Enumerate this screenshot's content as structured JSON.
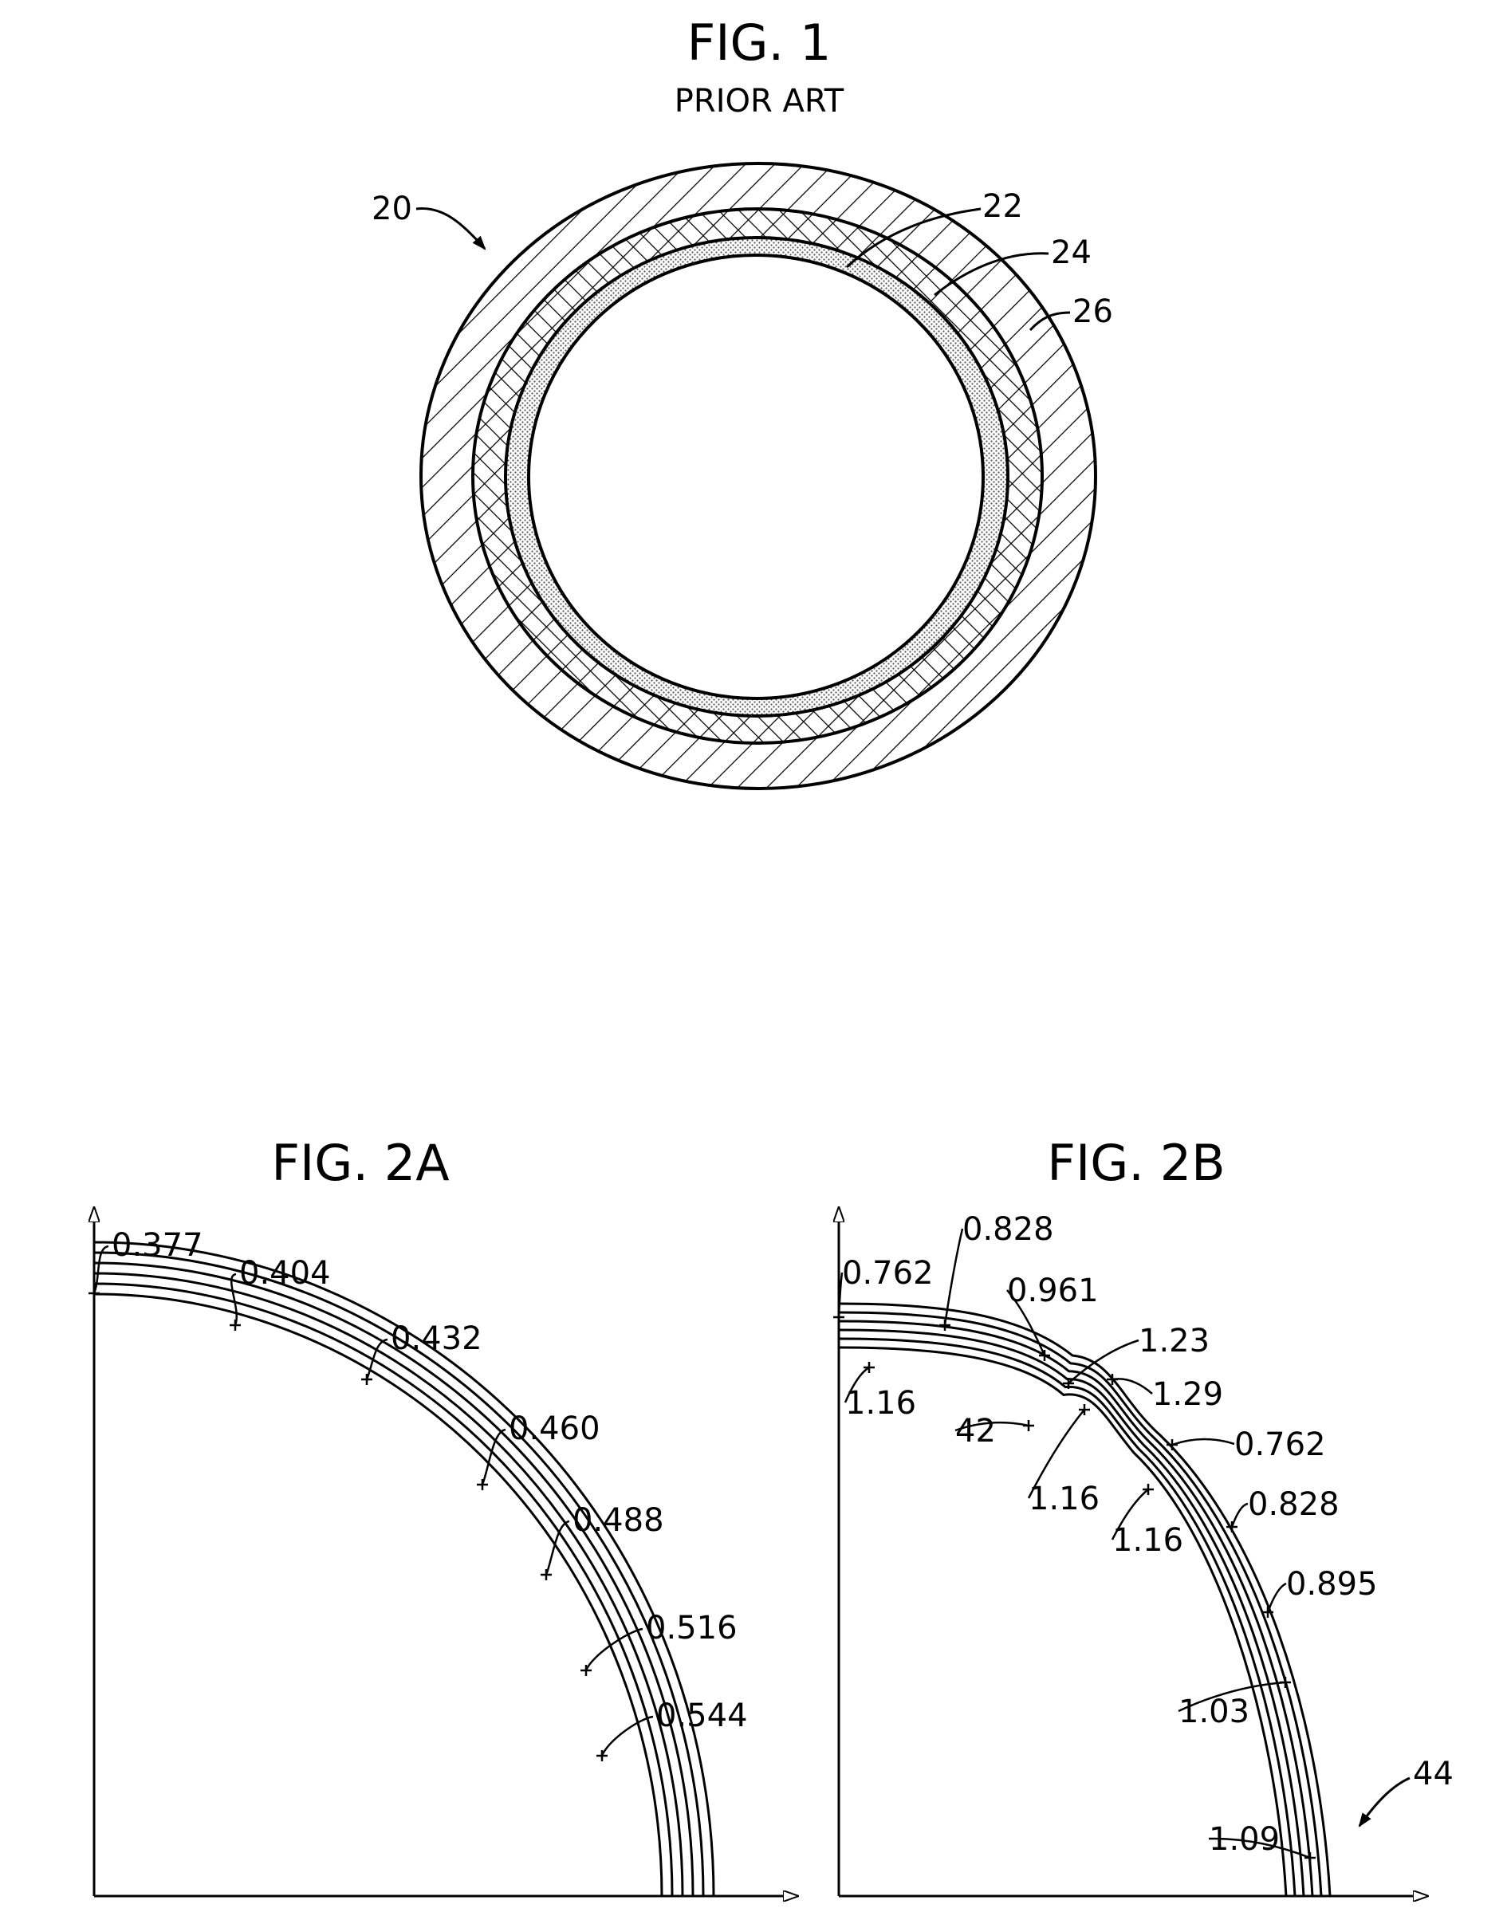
{
  "fig1": {
    "title": "FIG.  1",
    "subtitle": "PRIOR ART",
    "refs": {
      "assembly": "20",
      "inner_layer": "22",
      "middle_layer": "24",
      "outer_layer": "26"
    }
  },
  "fig2a": {
    "title": "FIG.  2A",
    "labels": [
      "0.377",
      "0.404",
      "0.432",
      "0.460",
      "0.488",
      "0.516",
      "0.544"
    ]
  },
  "fig2b": {
    "title": "FIG.  2B",
    "labels": {
      "a": "0.762",
      "b": "0.828",
      "c": "0.961",
      "d": "1.23",
      "e": "1.29",
      "f": "1.16",
      "g": "42",
      "h": "1.16",
      "i": "1.16",
      "j": "0.762",
      "k": "0.828",
      "l": "0.895",
      "m": "1.03",
      "n": "1.09",
      "o": "44"
    }
  }
}
